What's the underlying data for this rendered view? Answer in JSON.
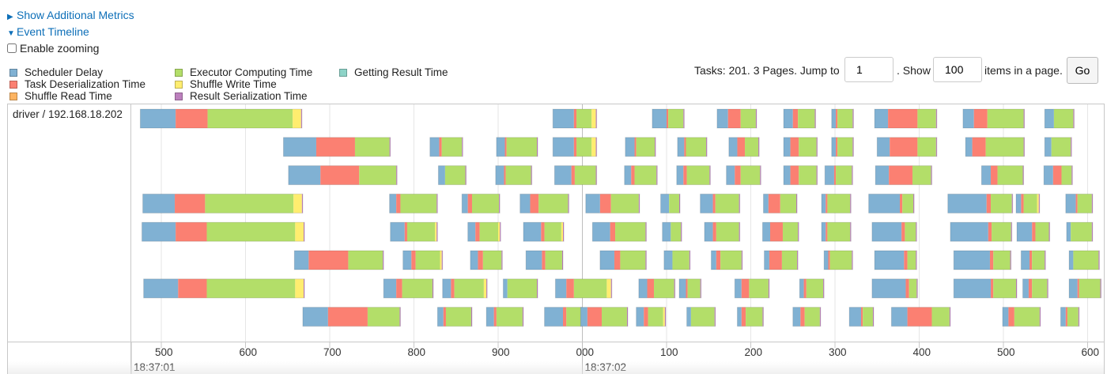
{
  "links": {
    "additional_metrics": "Show Additional Metrics",
    "event_timeline": "Event Timeline"
  },
  "zoom": {
    "label": "Enable zooming",
    "checked": false
  },
  "legend": [
    {
      "name": "Scheduler Delay",
      "color": "#80b1d3"
    },
    {
      "name": "Task Deserialization Time",
      "color": "#fb8072"
    },
    {
      "name": "Shuffle Read Time",
      "color": "#fdb462"
    },
    {
      "name": "Executor Computing Time",
      "color": "#b3de69"
    },
    {
      "name": "Shuffle Write Time",
      "color": "#ffed6f"
    },
    {
      "name": "Result Serialization Time",
      "color": "#bc80bd"
    },
    {
      "name": "Getting Result Time",
      "color": "#8dd3c7"
    }
  ],
  "pager": {
    "prefix": "Tasks: 201. 3 Pages. Jump to",
    "page_value": "1",
    "show_label": ". Show",
    "page_size_value": "100",
    "suffix": "items in a page.",
    "go_label": "Go"
  },
  "timeline": {
    "group_label": "driver / 192.168.18.202",
    "axis": {
      "ticks": [
        {
          "ms": 500,
          "label": "500"
        },
        {
          "ms": 600,
          "label": "600"
        },
        {
          "ms": 700,
          "label": "700"
        },
        {
          "ms": 800,
          "label": "800"
        },
        {
          "ms": 900,
          "label": "900"
        },
        {
          "ms": 1000,
          "label": "000"
        },
        {
          "ms": 1100,
          "label": "100"
        },
        {
          "ms": 1200,
          "label": "200"
        },
        {
          "ms": 1300,
          "label": "300"
        },
        {
          "ms": 1400,
          "label": "400"
        },
        {
          "ms": 1500,
          "label": "500"
        },
        {
          "ms": 1600,
          "label": "600"
        }
      ],
      "major": [
        {
          "ms": 1000,
          "label": "18:37:02"
        }
      ],
      "start_label": "18:37:01"
    },
    "rows": [
      [
        [
          475,
          [
            42,
            38,
            101,
            10,
            1
          ]
        ],
        [
          965,
          [
            25,
            3,
            18,
            5,
            1
          ]
        ],
        [
          1083,
          [
            17,
            2,
            18,
            0,
            1
          ]
        ],
        [
          1160,
          [
            13,
            15,
            18,
            0,
            1
          ]
        ],
        [
          1239,
          [
            11,
            6,
            20,
            0,
            1
          ]
        ],
        [
          1296,
          [
            5,
            2,
            18,
            0,
            1
          ]
        ],
        [
          1347,
          [
            16,
            35,
            22,
            0,
            1
          ]
        ],
        [
          1452,
          [
            13,
            16,
            43,
            0,
            1
          ]
        ],
        [
          1549,
          [
            11,
            0,
            23,
            0,
            1
          ]
        ]
      ],
      [
        [
          645,
          [
            39,
            46,
            41,
            0,
            1
          ]
        ],
        [
          819,
          [
            11,
            3,
            24,
            0,
            1
          ]
        ],
        [
          898,
          [
            10,
            2,
            36,
            0,
            1
          ]
        ],
        [
          965,
          [
            25,
            3,
            18,
            5,
            1
          ]
        ],
        [
          1051,
          [
            11,
            2,
            22,
            0,
            1
          ]
        ],
        [
          1113,
          [
            8,
            2,
            24,
            0,
            1
          ]
        ],
        [
          1174,
          [
            10,
            9,
            16,
            0,
            1
          ]
        ],
        [
          1239,
          [
            8,
            10,
            21,
            0,
            1
          ]
        ],
        [
          1296,
          [
            5,
            2,
            18,
            0,
            1
          ]
        ],
        [
          1350,
          [
            15,
            33,
            22,
            0,
            1
          ]
        ],
        [
          1455,
          [
            8,
            16,
            45,
            0,
            1
          ]
        ],
        [
          1549,
          [
            8,
            0,
            23,
            0,
            1
          ]
        ]
      ],
      [
        [
          651,
          [
            38,
            46,
            44,
            0,
            1
          ]
        ],
        [
          829,
          [
            8,
            0,
            24,
            0,
            1
          ]
        ],
        [
          897,
          [
            10,
            2,
            30,
            0,
            1
          ]
        ],
        [
          967,
          [
            20,
            4,
            25,
            0,
            1
          ]
        ],
        [
          1050,
          [
            8,
            4,
            26,
            0,
            1
          ]
        ],
        [
          1112,
          [
            8,
            4,
            27,
            0,
            1
          ]
        ],
        [
          1171,
          [
            10,
            7,
            23,
            0,
            1
          ]
        ],
        [
          1239,
          [
            8,
            10,
            21,
            0,
            1
          ]
        ],
        [
          1288,
          [
            11,
            2,
            19,
            0,
            1
          ]
        ],
        [
          1348,
          [
            16,
            28,
            22,
            0,
            1
          ]
        ],
        [
          1474,
          [
            11,
            8,
            30,
            0,
            1
          ]
        ],
        [
          1548,
          [
            11,
            10,
            12,
            0,
            1
          ]
        ]
      ],
      [
        [
          478,
          [
            38,
            36,
            105,
            10,
            1
          ]
        ],
        [
          771,
          [
            8,
            5,
            43,
            0,
            1
          ]
        ],
        [
          857,
          [
            7,
            5,
            32,
            0,
            1
          ]
        ],
        [
          926,
          [
            12,
            10,
            35,
            0,
            1
          ]
        ],
        [
          1004,
          [
            17,
            13,
            33,
            0,
            1
          ]
        ],
        [
          1093,
          [
            10,
            0,
            12,
            0,
            1
          ]
        ],
        [
          1140,
          [
            15,
            3,
            28,
            0,
            1
          ]
        ],
        [
          1215,
          [
            6,
            14,
            19,
            0,
            1
          ]
        ],
        [
          1284,
          [
            5,
            2,
            27,
            0,
            1
          ]
        ],
        [
          1340,
          [
            37,
            3,
            13,
            0,
            1
          ]
        ],
        [
          1434,
          [
            46,
            5,
            25,
            0,
            1
          ]
        ],
        [
          1515,
          [
            6,
            3,
            16,
            2,
            1
          ]
        ],
        [
          1574,
          [
            12,
            2,
            17,
            0,
            1
          ]
        ]
      ],
      [
        [
          477,
          [
            40,
            37,
            105,
            10,
            1
          ]
        ],
        [
          772,
          [
            17,
            3,
            33,
            2,
            1
          ]
        ],
        [
          864,
          [
            9,
            5,
            22,
            2,
            1
          ]
        ],
        [
          930,
          [
            21,
            4,
            20,
            2,
            1
          ]
        ],
        [
          1012,
          [
            21,
            6,
            36,
            0,
            1
          ]
        ],
        [
          1095,
          [
            10,
            0,
            12,
            0,
            1
          ]
        ],
        [
          1145,
          [
            10,
            4,
            27,
            0,
            1
          ]
        ],
        [
          1214,
          [
            9,
            15,
            18,
            0,
            1
          ]
        ],
        [
          1284,
          [
            5,
            2,
            27,
            0,
            1
          ]
        ],
        [
          1344,
          [
            35,
            4,
            13,
            0,
            1
          ]
        ],
        [
          1437,
          [
            45,
            4,
            23,
            0,
            1
          ]
        ],
        [
          1516,
          [
            18,
            4,
            16,
            0,
            1
          ]
        ],
        [
          1575,
          [
            5,
            0,
            25,
            0,
            1
          ]
        ]
      ],
      [
        [
          658,
          [
            17,
            47,
            41,
            0,
            1
          ]
        ],
        [
          787,
          [
            10,
            5,
            29,
            2,
            1
          ]
        ],
        [
          867,
          [
            9,
            6,
            22,
            0,
            1
          ]
        ],
        [
          933,
          [
            19,
            4,
            20,
            0,
            1
          ]
        ],
        [
          1021,
          [
            17,
            7,
            30,
            0,
            1
          ]
        ],
        [
          1097,
          [
            10,
            0,
            20,
            0,
            1
          ]
        ],
        [
          1153,
          [
            6,
            5,
            25,
            0,
            1
          ]
        ],
        [
          1216,
          [
            6,
            15,
            18,
            0,
            1
          ]
        ],
        [
          1287,
          [
            5,
            2,
            26,
            0,
            1
          ]
        ],
        [
          1347,
          [
            35,
            4,
            10,
            0,
            1
          ]
        ],
        [
          1441,
          [
            43,
            4,
            20,
            0,
            1
          ]
        ],
        [
          1521,
          [
            10,
            3,
            15,
            0,
            1
          ]
        ],
        [
          1578,
          [
            5,
            0,
            30,
            0,
            1
          ]
        ]
      ],
      [
        [
          479,
          [
            41,
            34,
            105,
            10,
            1
          ]
        ],
        [
          764,
          [
            15,
            7,
            36,
            0,
            1
          ]
        ],
        [
          834,
          [
            10,
            4,
            35,
            3,
            1
          ]
        ],
        [
          906,
          [
            5,
            0,
            35,
            0,
            1
          ]
        ],
        [
          968,
          [
            13,
            9,
            39,
            5,
            1
          ]
        ],
        [
          1067,
          [
            10,
            8,
            24,
            0,
            1
          ]
        ],
        [
          1115,
          [
            8,
            2,
            15,
            0,
            1
          ]
        ],
        [
          1181,
          [
            8,
            9,
            23,
            0,
            1
          ]
        ],
        [
          1258,
          [
            5,
            3,
            20,
            0,
            1
          ]
        ],
        [
          1344,
          [
            40,
            4,
            9,
            0,
            1
          ]
        ],
        [
          1441,
          [
            44,
            3,
            27,
            0,
            1
          ]
        ],
        [
          1523,
          [
            7,
            4,
            18,
            0,
            1
          ]
        ],
        [
          1578,
          [
            10,
            2,
            25,
            0,
            1
          ]
        ]
      ],
      [
        [
          668,
          [
            30,
            47,
            38,
            0,
            1
          ]
        ],
        [
          828,
          [
            7,
            3,
            30,
            0,
            1
          ]
        ],
        [
          886,
          [
            9,
            3,
            31,
            0,
            1
          ]
        ],
        [
          955,
          [
            22,
            4,
            17,
            0,
            1
          ]
        ],
        [
          998,
          [
            8,
            17,
            30,
            0,
            1
          ]
        ],
        [
          1064,
          [
            9,
            5,
            18,
            2,
            1
          ]
        ],
        [
          1124,
          [
            5,
            0,
            28,
            0,
            1
          ]
        ],
        [
          1184,
          [
            5,
            5,
            20,
            0,
            1
          ]
        ],
        [
          1250,
          [
            9,
            5,
            18,
            0,
            1
          ]
        ],
        [
          1317,
          [
            14,
            2,
            12,
            0,
            1
          ]
        ],
        [
          1367,
          [
            19,
            29,
            21,
            0,
            1
          ]
        ],
        [
          1499,
          [
            7,
            7,
            30,
            0,
            1
          ]
        ],
        [
          1568,
          [
            6,
            2,
            13,
            0,
            1
          ]
        ],
        [
          1627,
          [
            12,
            2,
            23,
            0,
            1
          ]
        ]
      ]
    ]
  }
}
